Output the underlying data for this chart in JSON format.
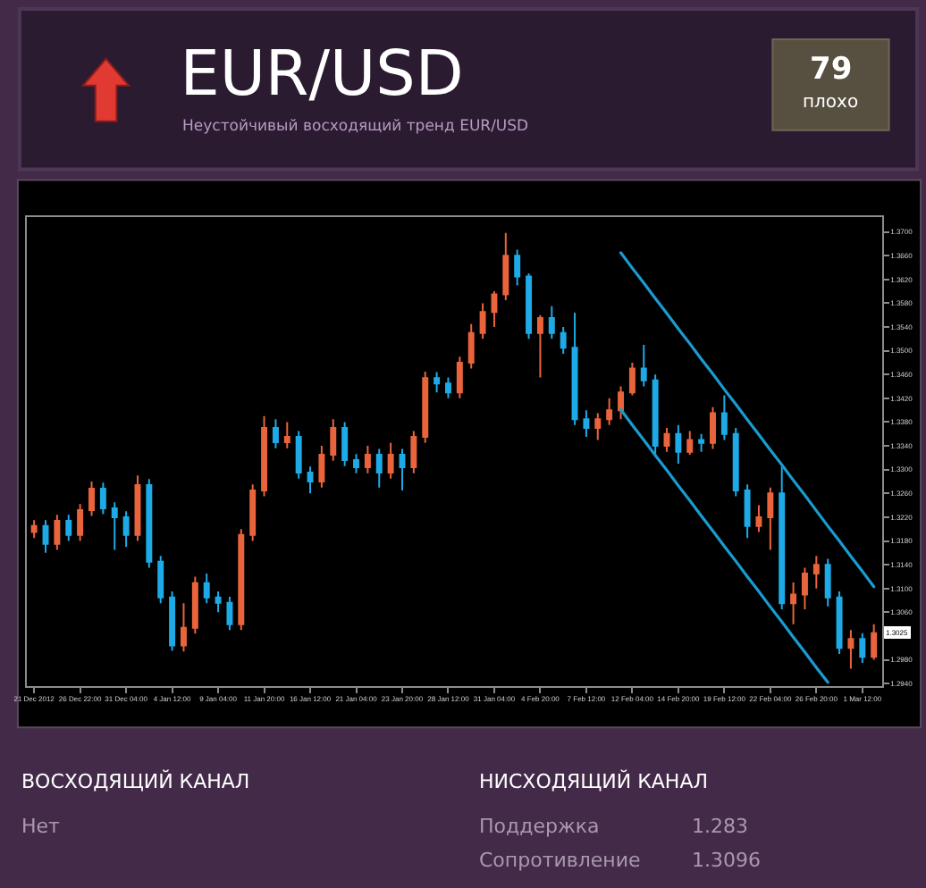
{
  "chart_data": {
    "type": "candlestick",
    "title": "EUR/USD",
    "subtitle": "Неустойчивый восходящий тренд EUR/USD",
    "categories": [
      "21 Dec 2012",
      null,
      null,
      null,
      "26 Dec 22:00",
      null,
      null,
      null,
      "31 Dec 04:00",
      null,
      null,
      null,
      "4 Jan 12:00",
      null,
      null,
      null,
      "9 Jan 04:00",
      null,
      null,
      null,
      "11 Jan 20:00",
      null,
      null,
      null,
      "16 Jan 12:00",
      null,
      null,
      null,
      "21 Jan 04:00",
      null,
      null,
      null,
      "23 Jan 20:00",
      null,
      null,
      null,
      "28 Jan 12:00",
      null,
      null,
      null,
      "31 Jan 04:00",
      null,
      null,
      null,
      "4 Feb 20:00",
      null,
      null,
      null,
      "7 Feb 12:00",
      null,
      null,
      null,
      "12 Feb 04:00",
      null,
      null,
      null,
      "14 Feb 20:00",
      null,
      null,
      null,
      "19 Feb 12:00",
      null,
      null,
      null,
      "22 Feb 04:00",
      null,
      null,
      null,
      "26 Feb 20:00",
      null,
      null,
      null,
      "1 Mar 12:00",
      null
    ],
    "ohlc": [
      [
        1.3195,
        1.3215,
        1.3185,
        1.3205
      ],
      [
        1.3205,
        1.3215,
        1.316,
        1.3175
      ],
      [
        1.3175,
        1.3224,
        1.3165,
        1.3214
      ],
      [
        1.3214,
        1.3224,
        1.318,
        1.319
      ],
      [
        1.319,
        1.3242,
        1.318,
        1.3232
      ],
      [
        1.3232,
        1.328,
        1.3222,
        1.3268
      ],
      [
        1.3268,
        1.3278,
        1.3225,
        1.3235
      ],
      [
        1.3235,
        1.3245,
        1.3165,
        1.322
      ],
      [
        1.322,
        1.323,
        1.317,
        1.319
      ],
      [
        1.319,
        1.329,
        1.318,
        1.3274
      ],
      [
        1.3274,
        1.3284,
        1.3135,
        1.3145
      ],
      [
        1.3145,
        1.3155,
        1.3075,
        1.3085
      ],
      [
        1.3085,
        1.3095,
        1.2995,
        1.3004
      ],
      [
        1.3004,
        1.3075,
        1.2994,
        1.3034
      ],
      [
        1.3034,
        1.312,
        1.3024,
        1.3109
      ],
      [
        1.3109,
        1.3125,
        1.3075,
        1.3085
      ],
      [
        1.3085,
        1.3095,
        1.306,
        1.3076
      ],
      [
        1.3076,
        1.3086,
        1.303,
        1.304
      ],
      [
        1.304,
        1.32,
        1.303,
        1.319
      ],
      [
        1.319,
        1.3275,
        1.318,
        1.3265
      ],
      [
        1.3265,
        1.339,
        1.3255,
        1.337
      ],
      [
        1.337,
        1.3385,
        1.3336,
        1.3346
      ],
      [
        1.3346,
        1.338,
        1.3336,
        1.3355
      ],
      [
        1.3355,
        1.3365,
        1.3285,
        1.3295
      ],
      [
        1.3295,
        1.3305,
        1.326,
        1.328
      ],
      [
        1.328,
        1.334,
        1.327,
        1.3325
      ],
      [
        1.3325,
        1.3385,
        1.3315,
        1.337
      ],
      [
        1.337,
        1.338,
        1.3306,
        1.3316
      ],
      [
        1.3316,
        1.3326,
        1.3294,
        1.3304
      ],
      [
        1.3304,
        1.334,
        1.3294,
        1.3325
      ],
      [
        1.3325,
        1.3335,
        1.327,
        1.3295
      ],
      [
        1.3295,
        1.3345,
        1.3285,
        1.3325
      ],
      [
        1.3325,
        1.3335,
        1.3265,
        1.3304
      ],
      [
        1.3304,
        1.3365,
        1.3294,
        1.3355
      ],
      [
        1.3355,
        1.3465,
        1.3345,
        1.3454
      ],
      [
        1.3454,
        1.3464,
        1.343,
        1.3445
      ],
      [
        1.3445,
        1.3455,
        1.342,
        1.343
      ],
      [
        1.343,
        1.349,
        1.342,
        1.348
      ],
      [
        1.348,
        1.3545,
        1.347,
        1.353
      ],
      [
        1.353,
        1.358,
        1.352,
        1.3565
      ],
      [
        1.3565,
        1.36,
        1.354,
        1.3595
      ],
      [
        1.3595,
        1.3698,
        1.3585,
        1.366
      ],
      [
        1.366,
        1.367,
        1.361,
        1.3625
      ],
      [
        1.3625,
        1.363,
        1.352,
        1.353
      ],
      [
        1.353,
        1.356,
        1.3455,
        1.3555
      ],
      [
        1.3555,
        1.3575,
        1.352,
        1.353
      ],
      [
        1.353,
        1.354,
        1.3495,
        1.3505
      ],
      [
        1.3505,
        1.3564,
        1.3375,
        1.3385
      ],
      [
        1.3385,
        1.34,
        1.3355,
        1.337
      ],
      [
        1.337,
        1.3395,
        1.335,
        1.3385
      ],
      [
        1.3385,
        1.342,
        1.3375,
        1.34
      ],
      [
        1.34,
        1.344,
        1.3385,
        1.343
      ],
      [
        1.343,
        1.348,
        1.3425,
        1.347
      ],
      [
        1.347,
        1.351,
        1.344,
        1.345
      ],
      [
        1.345,
        1.346,
        1.3325,
        1.334
      ],
      [
        1.334,
        1.337,
        1.333,
        1.336
      ],
      [
        1.336,
        1.3375,
        1.331,
        1.333
      ],
      [
        1.333,
        1.3365,
        1.3325,
        1.335
      ],
      [
        1.335,
        1.336,
        1.333,
        1.3345
      ],
      [
        1.3345,
        1.3405,
        1.3335,
        1.3395
      ],
      [
        1.3395,
        1.3425,
        1.335,
        1.336
      ],
      [
        1.336,
        1.337,
        1.3255,
        1.3265
      ],
      [
        1.3265,
        1.3275,
        1.3185,
        1.3205
      ],
      [
        1.3205,
        1.324,
        1.3195,
        1.322
      ],
      [
        1.322,
        1.327,
        1.3165,
        1.326
      ],
      [
        1.326,
        1.3305,
        1.3065,
        1.3075
      ],
      [
        1.3075,
        1.311,
        1.304,
        1.309
      ],
      [
        1.309,
        1.3135,
        1.3065,
        1.3125
      ],
      [
        1.3125,
        1.3155,
        1.31,
        1.314
      ],
      [
        1.314,
        1.315,
        1.307,
        1.3085
      ],
      [
        1.3085,
        1.3095,
        1.299,
        1.3
      ],
      [
        1.3,
        1.303,
        1.2965,
        1.3015
      ],
      [
        1.3015,
        1.3025,
        1.2975,
        1.2985
      ],
      [
        1.2985,
        1.304,
        1.298,
        1.3025
      ]
    ],
    "colors": [
      "#e9643c",
      "#1eaae6",
      "#e9643c",
      "#1eaae6",
      "#e9643c",
      "#e9643c",
      "#1eaae6",
      "#1eaae6",
      "#1eaae6",
      "#e9643c",
      "#1eaae6",
      "#1eaae6",
      "#1eaae6",
      "#e9643c",
      "#e9643c",
      "#1eaae6",
      "#1eaae6",
      "#1eaae6",
      "#e9643c",
      "#e9643c",
      "#e9643c",
      "#1eaae6",
      "#e9643c",
      "#1eaae6",
      "#1eaae6",
      "#e9643c",
      "#e9643c",
      "#1eaae6",
      "#1eaae6",
      "#e9643c",
      "#1eaae6",
      "#e9643c",
      "#1eaae6",
      "#e9643c",
      "#e9643c",
      "#1eaae6",
      "#1eaae6",
      "#e9643c",
      "#e9643c",
      "#e9643c",
      "#e9643c",
      "#e9643c",
      "#1eaae6",
      "#1eaae6",
      "#e9643c",
      "#1eaae6",
      "#1eaae6",
      "#1eaae6",
      "#1eaae6",
      "#e9643c",
      "#e9643c",
      "#e9643c",
      "#e9643c",
      "#1eaae6",
      "#1eaae6",
      "#e9643c",
      "#1eaae6",
      "#e9643c",
      "#1eaae6",
      "#e9643c",
      "#1eaae6",
      "#1eaae6",
      "#1eaae6",
      "#e9643c",
      "#e9643c",
      "#1eaae6",
      "#e9643c",
      "#e9643c",
      "#e9643c",
      "#1eaae6",
      "#1eaae6",
      "#e9643c",
      "#1eaae6",
      "#e9643c"
    ],
    "series": [
      {
        "type": "line",
        "color": "#1a9bd0",
        "values": [
          null,
          null,
          null,
          null,
          null,
          null,
          null,
          null,
          null,
          null,
          null,
          null,
          null,
          null,
          null,
          null,
          null,
          null,
          null,
          null,
          null,
          null,
          null,
          null,
          null,
          null,
          null,
          null,
          null,
          null,
          null,
          null,
          null,
          null,
          null,
          null,
          null,
          null,
          null,
          null,
          null,
          null,
          null,
          null,
          null,
          null,
          null,
          null,
          null,
          null,
          null,
          1.3665,
          1.3639,
          1.3614,
          1.3588,
          1.3563,
          1.3537,
          1.3512,
          1.3486,
          1.3461,
          1.3435,
          1.341,
          1.3384,
          1.3359,
          1.3333,
          1.3308,
          1.3282,
          1.3257,
          1.3231,
          1.3205,
          1.318,
          1.3154,
          1.3129,
          1.3103
        ]
      },
      {
        "type": "line",
        "color": "#1a9bd0",
        "values": [
          null,
          null,
          null,
          null,
          null,
          null,
          null,
          null,
          null,
          null,
          null,
          null,
          null,
          null,
          null,
          null,
          null,
          null,
          null,
          null,
          null,
          null,
          null,
          null,
          null,
          null,
          null,
          null,
          null,
          null,
          null,
          null,
          null,
          null,
          null,
          null,
          null,
          null,
          null,
          null,
          null,
          null,
          null,
          null,
          null,
          null,
          null,
          null,
          null,
          null,
          null,
          1.3401,
          1.3375,
          1.335,
          1.3324,
          1.3299,
          1.3273,
          1.3248,
          1.3222,
          1.3197,
          1.3171,
          1.3146,
          1.312,
          1.3095,
          1.3069,
          1.3044,
          1.3018,
          1.2993,
          1.2967,
          1.2942,
          null,
          null,
          null,
          null
        ]
      }
    ],
    "ylim": [
      1.2936,
      1.3725
    ],
    "yticks": [
      {
        "value": 1.294,
        "label": "1.2940"
      },
      {
        "value": 1.298,
        "label": "1.2980"
      },
      {
        "value": 1.302,
        "label": null
      },
      {
        "value": 1.306,
        "label": "1.3060"
      },
      {
        "value": 1.31,
        "label": "1.3100"
      },
      {
        "value": 1.314,
        "label": "1.3140"
      },
      {
        "value": 1.318,
        "label": "1.3180"
      },
      {
        "value": 1.322,
        "label": "1.3220"
      },
      {
        "value": 1.326,
        "label": "1.3260"
      },
      {
        "value": 1.33,
        "label": "1.3300"
      },
      {
        "value": 1.334,
        "label": "1.3340"
      },
      {
        "value": 1.338,
        "label": "1.3380"
      },
      {
        "value": 1.342,
        "label": "1.3420"
      },
      {
        "value": 1.346,
        "label": "1.3460"
      },
      {
        "value": 1.35,
        "label": "1.3500"
      },
      {
        "value": 1.354,
        "label": "1.3540"
      },
      {
        "value": 1.358,
        "label": "1.3580"
      },
      {
        "value": 1.362,
        "label": "1.3620"
      },
      {
        "value": 1.366,
        "label": "1.3660"
      },
      {
        "value": 1.37,
        "label": "1.3700"
      }
    ],
    "annotations": [
      "79",
      "плохо",
      "ВОСХОДЯЩИЙ КАНАЛ",
      "Нет",
      "НИСХОДЯЩИЙ КАНАЛ",
      "Поддержка",
      "1.283",
      "Сопротивление",
      "1.3096",
      {
        "text": "1.3025",
        "y": 1.3025
      }
    ]
  }
}
